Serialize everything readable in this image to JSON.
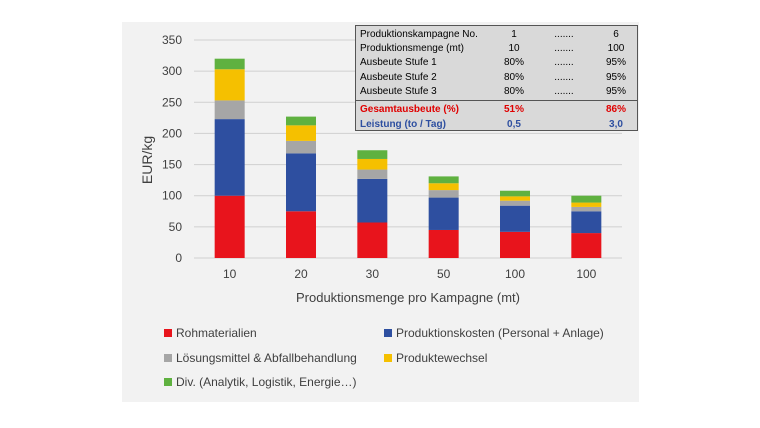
{
  "chart_data": {
    "type": "bar",
    "stacked": true,
    "ylabel": "EUR/kg",
    "xlabel": "Produktionsmenge pro Kampagne (mt)",
    "ylim": [
      0,
      350
    ],
    "yticks": [
      0,
      50,
      100,
      150,
      200,
      250,
      300,
      350
    ],
    "grid": true,
    "categories": [
      "10",
      "20",
      "30",
      "50",
      "100",
      "100"
    ],
    "series": [
      {
        "name": "Rohmaterialien",
        "color": "#e8141c",
        "values": [
          100,
          75,
          57,
          45,
          42,
          40
        ]
      },
      {
        "name": "Produktionskosten (Personal  + Anlage)",
        "color": "#2e4fa0",
        "values": [
          123,
          93,
          70,
          52,
          42,
          35
        ]
      },
      {
        "name": "Lösungsmittel & Abfallbehandlung",
        "color": "#a6a6a6",
        "values": [
          30,
          20,
          15,
          12,
          8,
          7
        ]
      },
      {
        "name": "Produktewechsel",
        "color": "#f5c000",
        "values": [
          50,
          25,
          17,
          11,
          7,
          7
        ]
      },
      {
        "name": "Div. (Analytik, Logistik, Energie…)",
        "color": "#5fb140",
        "values": [
          17,
          14,
          14,
          11,
          9,
          11
        ]
      }
    ]
  },
  "info_table": {
    "rows": [
      {
        "label": "Produktionskampagne No.",
        "first": "1",
        "dots": ".......",
        "last": "6"
      },
      {
        "label": "Produktionsmenge (mt)",
        "first": "10",
        "dots": ".......",
        "last": "100"
      },
      {
        "label": "Ausbeute Stufe 1",
        "first": "80%",
        "dots": ".......",
        "last": "95%"
      },
      {
        "label": "Ausbeute Stufe 2",
        "first": "80%",
        "dots": ".......",
        "last": "95%"
      },
      {
        "label": "Ausbeute Stufe 3",
        "first": "80%",
        "dots": ".......",
        "last": "95%"
      }
    ],
    "gesamt": {
      "label": "Gesamtausbeute (%)",
      "first": "51%",
      "last": "86%"
    },
    "leistung": {
      "label": "Leistung (to / Tag)",
      "first": "0,5",
      "last": "3,0"
    }
  }
}
